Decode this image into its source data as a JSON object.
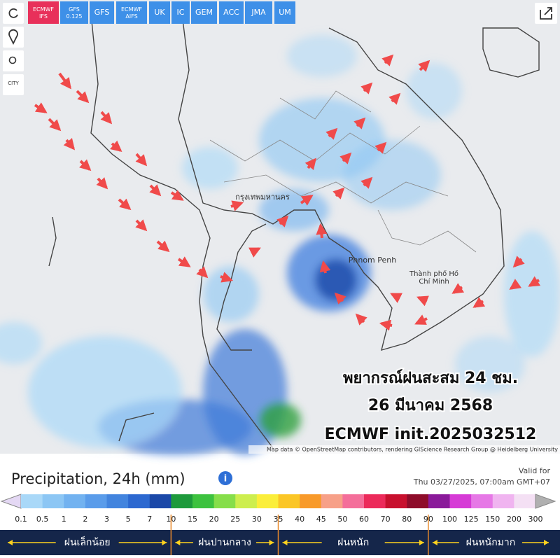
{
  "toolbar": {
    "models": [
      "ECMWF IFS",
      "GFS 0.125",
      "GFS",
      "ECMWF AIFS",
      "UK",
      "IC",
      "GEM",
      "ACC",
      "JMA",
      "UM"
    ],
    "city_button": "CITY"
  },
  "map": {
    "places": [
      "กรุงเทพมหานคร",
      "Phnom Penh",
      "Thành phố Hồ Chí Minh"
    ],
    "overlay": [
      "พยากรณ์ฝนสะสม 24 ชม.",
      "26 มีนาคม 2568",
      "ECMWF init.2025032512"
    ],
    "attribution": "Map data © OpenStreetMap contributors, rendering GIScience Research Group @ Heidelberg University"
  },
  "legend": {
    "title": "Precipitation, 24h (mm)",
    "valid_label": "Valid for",
    "valid_time": "Thu 03/27/2025, 07:00am GMT+07",
    "labels": [
      "0.1",
      "0.5",
      "1",
      "2",
      "3",
      "5",
      "7",
      "10",
      "15",
      "20",
      "25",
      "30",
      "35",
      "40",
      "45",
      "50",
      "60",
      "70",
      "80",
      "90",
      "100",
      "125",
      "150",
      "200",
      "300"
    ],
    "colors": [
      "#a9d8f8",
      "#8cc6f4",
      "#72b2f0",
      "#5a9cea",
      "#4284de",
      "#2c68d0",
      "#1b48a8",
      "#1e9a3c",
      "#3dc23f",
      "#86de4a",
      "#cdee4e",
      "#fbee3a",
      "#fbc626",
      "#f89a2a",
      "#f7a088",
      "#f46e9a",
      "#ec2a5a",
      "#c8102e",
      "#8e0c2a",
      "#8a1a9a",
      "#d63ad6",
      "#e678e6",
      "#f0b4f0",
      "#f4e0f4"
    ],
    "categories": [
      "ฝนเล็กน้อย",
      "ฝนปานกลาง",
      "ฝนหนัก",
      "ฝนหนักมาก"
    ]
  }
}
